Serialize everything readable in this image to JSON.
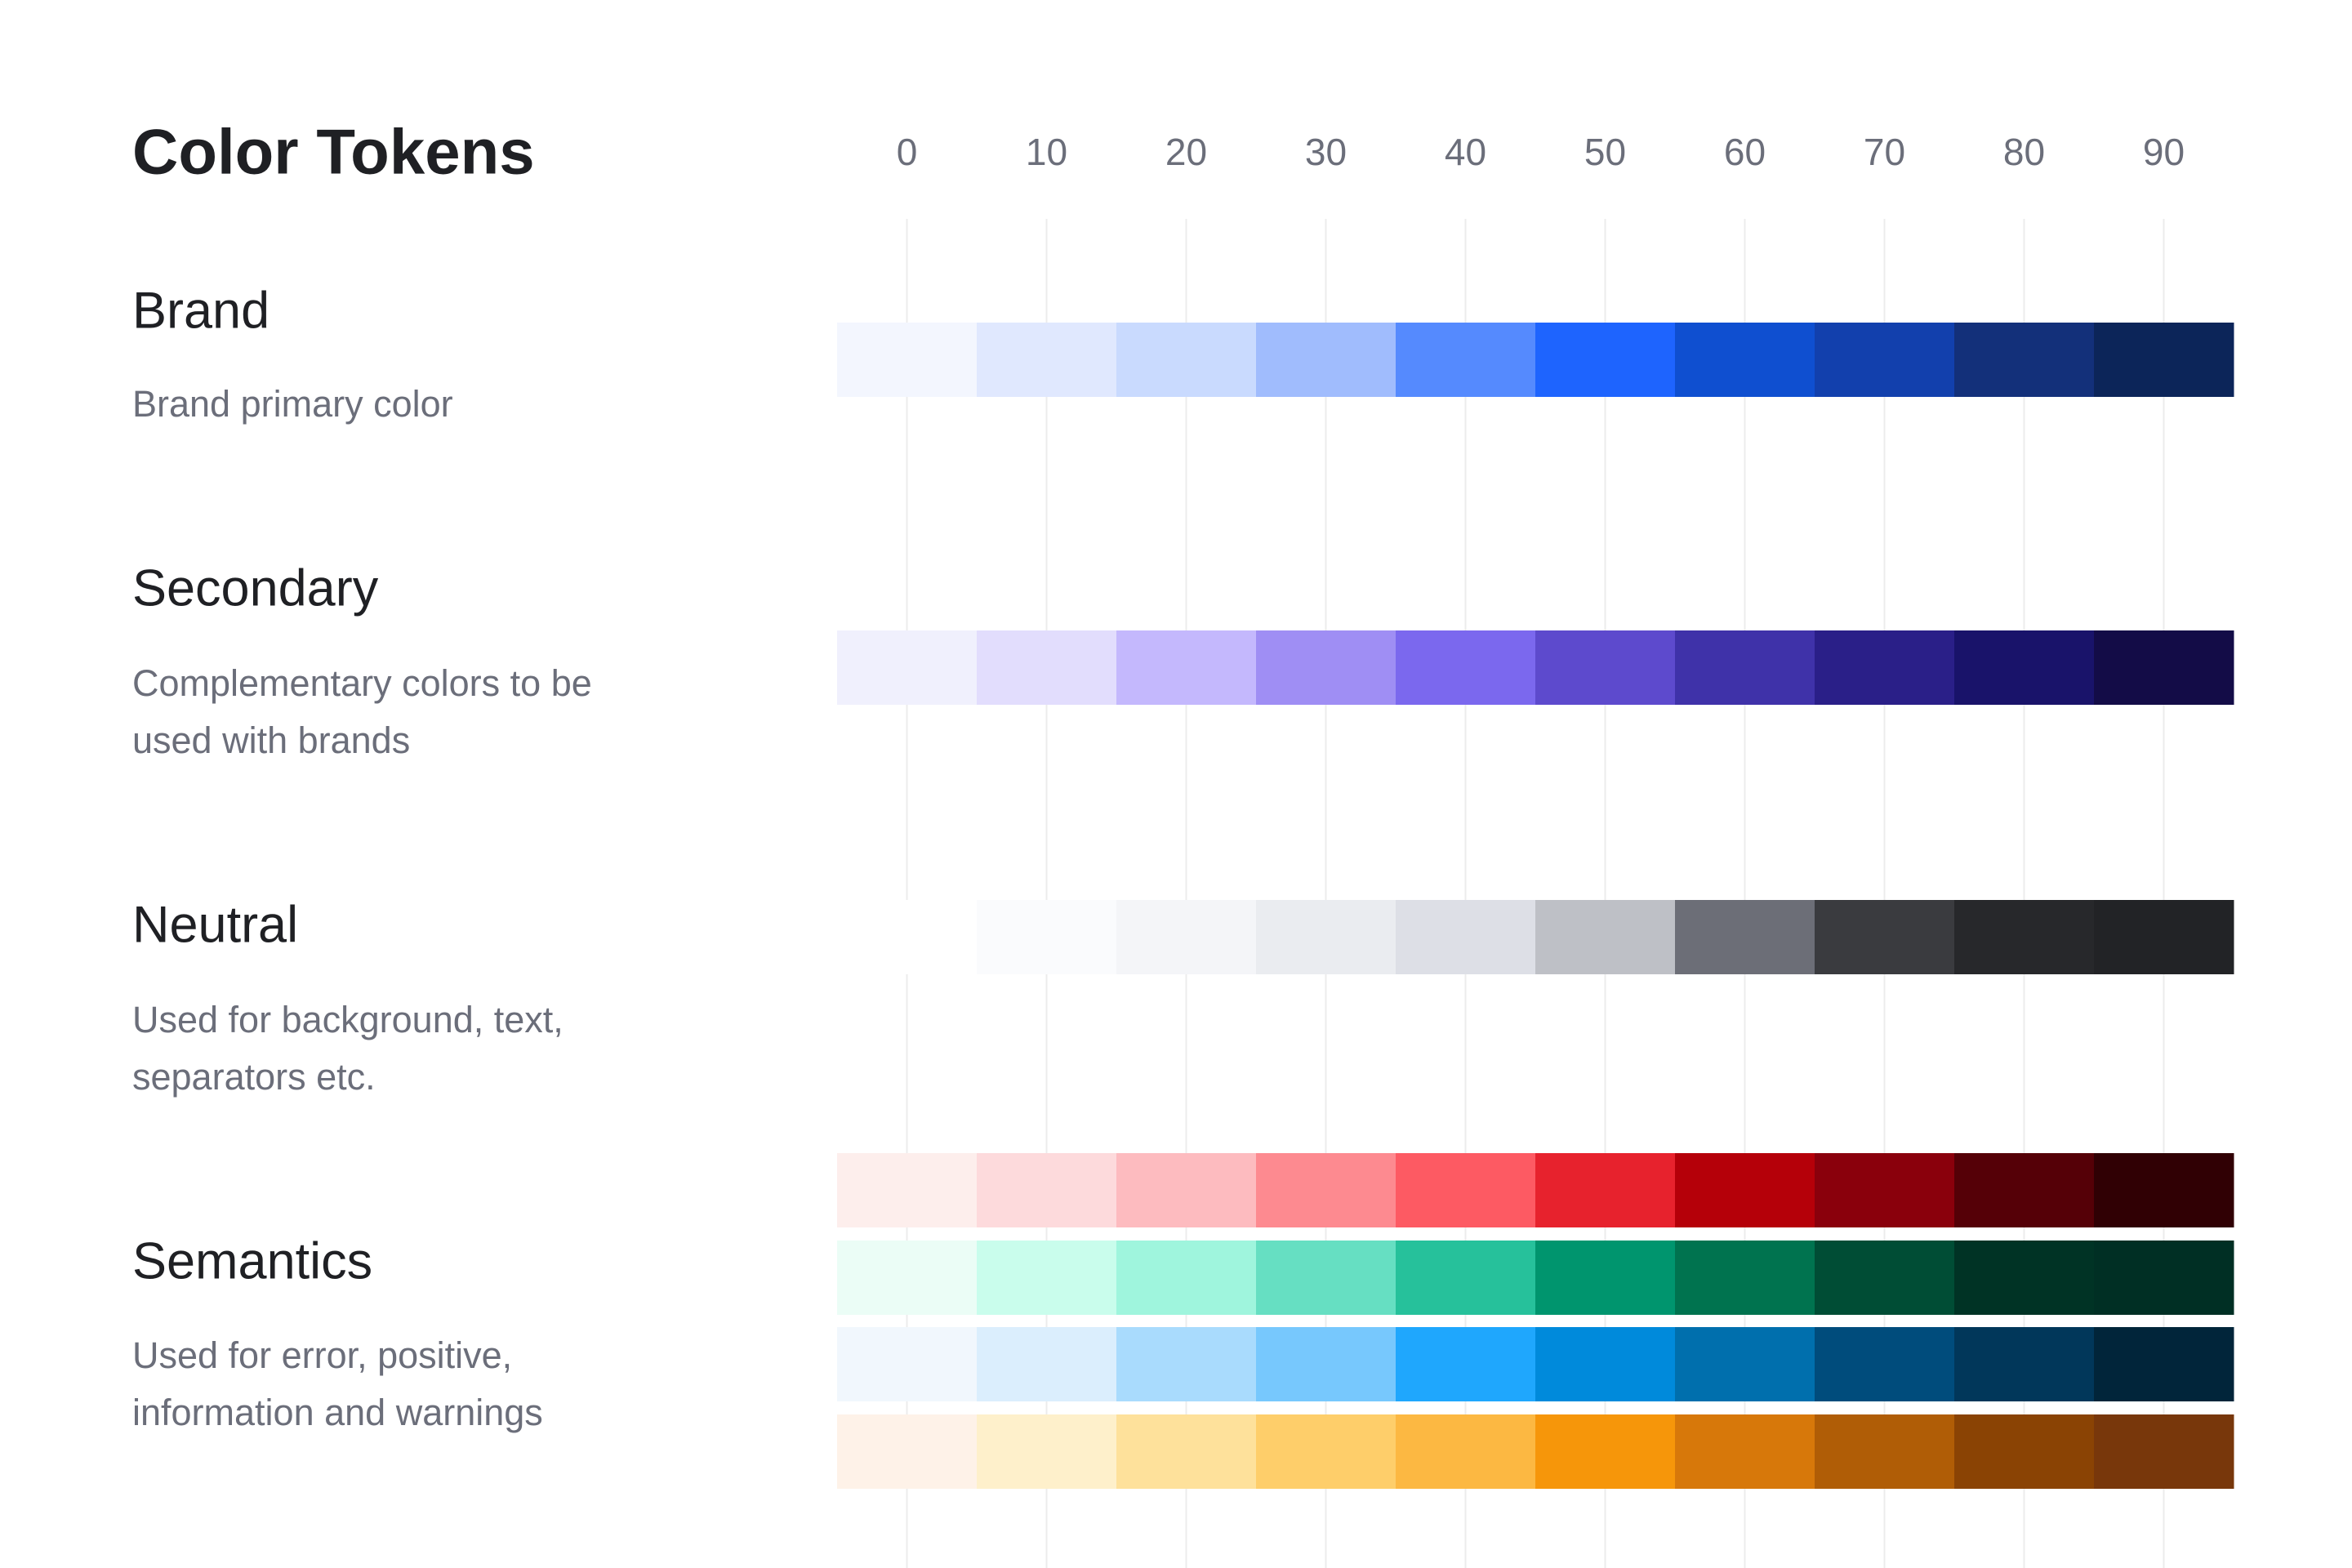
{
  "title": "Color Tokens",
  "columns": [
    "0",
    "10",
    "20",
    "30",
    "40",
    "50",
    "60",
    "70",
    "80",
    "90"
  ],
  "groups": [
    {
      "name": "Brand",
      "description": [
        "Brand primary color"
      ],
      "palettes": [
        [
          "#f3f6fe",
          "#e0e8fe",
          "#c9dafe",
          "#a0bcfd",
          "#558afe",
          "#1e64fe",
          "#0f4fd0",
          "#1240ad",
          "#13307a",
          "#0c2559"
        ]
      ]
    },
    {
      "name": "Secondary",
      "description": [
        "Complementary colors to be",
        "used with brands"
      ],
      "palettes": [
        [
          "#f0f0fd",
          "#e2ddfd",
          "#c4b8fd",
          "#9f8ef4",
          "#7b68ee",
          "#5d4acd",
          "#3f32a9",
          "#2a1f88",
          "#19136a",
          "#130c47"
        ]
      ]
    },
    {
      "name": "Neutral",
      "description": [
        "Used for background, text,",
        "separators etc."
      ],
      "palettes": [
        [
          "#ffffff",
          "#fafbfd",
          "#f4f5f8",
          "#eaecf0",
          "#dddfe6",
          "#bec0c6",
          "#6c6e77",
          "#3a3b3f",
          "#27282b",
          "#222326"
        ]
      ]
    },
    {
      "name": "Semantics",
      "description": [
        "Used for error, positive,",
        "information and warnings"
      ],
      "palettes": [
        [
          "#fdeeec",
          "#fddadc",
          "#fdbbbf",
          "#fd8a90",
          "#fd5a63",
          "#e7222d",
          "#b50009",
          "#8a000c",
          "#550007",
          "#300004"
        ],
        [
          "#ebfdf6",
          "#c9fdec",
          "#9ff5dd",
          "#66dfc2",
          "#26c19b",
          "#00956e",
          "#00734f",
          "#004d35",
          "#003325",
          "#002f24"
        ],
        [
          "#f1f7fd",
          "#dbeefd",
          "#a9dbfd",
          "#77c8fd",
          "#1fa7fd",
          "#008adb",
          "#006fad",
          "#004c7c",
          "#01375a",
          "#01253a"
        ],
        [
          "#fef2e8",
          "#fef0cb",
          "#fee19b",
          "#fece6a",
          "#fcb842",
          "#f6960a",
          "#d7780a",
          "#b05d06",
          "#8a4304",
          "#78370b"
        ]
      ]
    }
  ]
}
